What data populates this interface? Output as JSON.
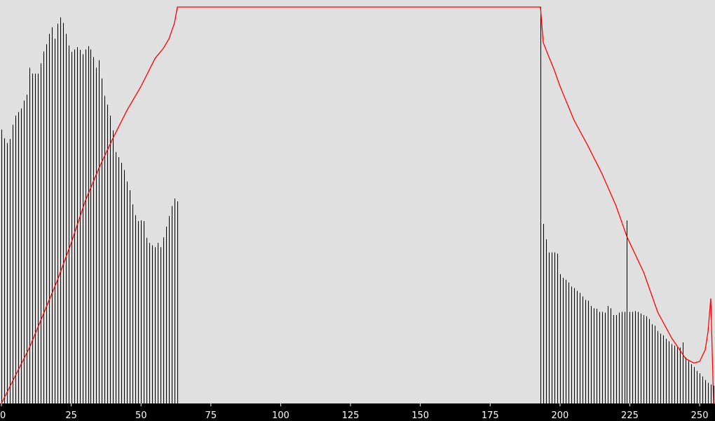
{
  "chart_data": {
    "type": "bar",
    "title": "",
    "xlabel": "",
    "ylabel": "",
    "xlim": [
      0,
      255
    ],
    "ylim": [
      0,
      100
    ],
    "grid": false,
    "legend": "none",
    "x_ticks": [
      "0",
      "25",
      "50",
      "75",
      "100",
      "125",
      "150",
      "175",
      "200",
      "225",
      "250"
    ],
    "x_tick_values": [
      0,
      25,
      50,
      75,
      100,
      125,
      150,
      175,
      200,
      225,
      250
    ],
    "histogram": [
      [
        0,
        69.1
      ],
      [
        1,
        66.9
      ],
      [
        2,
        65.7
      ],
      [
        3,
        66.7
      ],
      [
        4,
        70.3
      ],
      [
        5,
        72.6
      ],
      [
        6,
        73.5
      ],
      [
        7,
        74.4
      ],
      [
        8,
        76.4
      ],
      [
        9,
        77.9
      ],
      [
        10,
        84.7
      ],
      [
        11,
        83.2
      ],
      [
        12,
        83.2
      ],
      [
        13,
        83.2
      ],
      [
        14,
        85.8
      ],
      [
        15,
        88.8
      ],
      [
        16,
        90.6
      ],
      [
        17,
        93.2
      ],
      [
        18,
        94.9
      ],
      [
        19,
        92.0
      ],
      [
        20,
        95.8
      ],
      [
        21,
        97.4
      ],
      [
        22,
        96.0
      ],
      [
        23,
        93.2
      ],
      [
        24,
        90.3
      ],
      [
        25,
        88.7
      ],
      [
        26,
        89.3
      ],
      [
        27,
        89.9
      ],
      [
        28,
        89.2
      ],
      [
        29,
        88.1
      ],
      [
        30,
        89.3
      ],
      [
        31,
        90.1
      ],
      [
        32,
        89.3
      ],
      [
        33,
        87.4
      ],
      [
        34,
        84.7
      ],
      [
        35,
        86.6
      ],
      [
        36,
        82.0
      ],
      [
        37,
        77.6
      ],
      [
        38,
        75.4
      ],
      [
        39,
        72.6
      ],
      [
        40,
        68.9
      ],
      [
        41,
        63.4
      ],
      [
        42,
        62.1
      ],
      [
        43,
        60.7
      ],
      [
        44,
        58.9
      ],
      [
        45,
        56.0
      ],
      [
        46,
        53.8
      ],
      [
        47,
        50.2
      ],
      [
        48,
        47.5
      ],
      [
        49,
        46.0
      ],
      [
        50,
        46.2
      ],
      [
        51,
        46.0
      ],
      [
        52,
        41.8
      ],
      [
        53,
        40.5
      ],
      [
        54,
        39.9
      ],
      [
        55,
        39.4
      ],
      [
        56,
        40.5
      ],
      [
        57,
        39.4
      ],
      [
        58,
        41.9
      ],
      [
        59,
        44.6
      ],
      [
        60,
        47.3
      ],
      [
        61,
        49.8
      ],
      [
        62,
        51.7
      ],
      [
        63,
        51.0
      ],
      [
        193,
        100.0
      ],
      [
        194,
        45.3
      ],
      [
        195,
        41.4
      ],
      [
        196,
        38.1
      ],
      [
        197,
        38.1
      ],
      [
        198,
        38.1
      ],
      [
        199,
        37.8
      ],
      [
        200,
        32.6
      ],
      [
        201,
        31.7
      ],
      [
        202,
        31.2
      ],
      [
        203,
        30.5
      ],
      [
        204,
        29.5
      ],
      [
        205,
        29.1
      ],
      [
        206,
        28.4
      ],
      [
        207,
        27.9
      ],
      [
        208,
        27.0
      ],
      [
        209,
        26.1
      ],
      [
        210,
        25.9
      ],
      [
        211,
        24.6
      ],
      [
        212,
        24.0
      ],
      [
        213,
        23.9
      ],
      [
        214,
        23.1
      ],
      [
        215,
        23.1
      ],
      [
        216,
        22.9
      ],
      [
        217,
        24.6
      ],
      [
        218,
        24.0
      ],
      [
        219,
        22.3
      ],
      [
        220,
        22.3
      ],
      [
        221,
        22.9
      ],
      [
        222,
        23.1
      ],
      [
        223,
        23.1
      ],
      [
        224,
        46.2
      ],
      [
        225,
        23.1
      ],
      [
        226,
        23.1
      ],
      [
        227,
        23.3
      ],
      [
        228,
        23.1
      ],
      [
        229,
        22.7
      ],
      [
        230,
        22.3
      ],
      [
        231,
        22.0
      ],
      [
        232,
        21.3
      ],
      [
        233,
        20.0
      ],
      [
        234,
        19.6
      ],
      [
        235,
        18.3
      ],
      [
        236,
        17.6
      ],
      [
        237,
        17.2
      ],
      [
        238,
        16.3
      ],
      [
        239,
        15.7
      ],
      [
        240,
        15.0
      ],
      [
        241,
        14.6
      ],
      [
        242,
        14.1
      ],
      [
        243,
        14.1
      ],
      [
        244,
        15.4
      ],
      [
        245,
        11.6
      ],
      [
        246,
        10.7
      ],
      [
        247,
        9.9
      ],
      [
        248,
        9.2
      ],
      [
        249,
        8.2
      ],
      [
        250,
        7.6
      ],
      [
        251,
        6.8
      ],
      [
        252,
        5.9
      ],
      [
        253,
        5.2
      ],
      [
        254,
        4.8
      ],
      [
        255,
        4.5
      ]
    ],
    "histogram_color": "#000000",
    "curve": {
      "color": "#ff0000",
      "points": [
        [
          0,
          0
        ],
        [
          5,
          7
        ],
        [
          10,
          14
        ],
        [
          15,
          22.5
        ],
        [
          20,
          31
        ],
        [
          25,
          40.5
        ],
        [
          30,
          51
        ],
        [
          35,
          59.5
        ],
        [
          40,
          67
        ],
        [
          45,
          74
        ],
        [
          50,
          80
        ],
        [
          55,
          87
        ],
        [
          58,
          89.6
        ],
        [
          60,
          92
        ],
        [
          62,
          96
        ],
        [
          63,
          100
        ],
        [
          193,
          100
        ],
        [
          194,
          91
        ],
        [
          196,
          87.5
        ],
        [
          198,
          84
        ],
        [
          200,
          80
        ],
        [
          205,
          71.5
        ],
        [
          210,
          65
        ],
        [
          215,
          58
        ],
        [
          220,
          50
        ],
        [
          224,
          42
        ],
        [
          230,
          33
        ],
        [
          235,
          23
        ],
        [
          240,
          16.5
        ],
        [
          245,
          11.3
        ],
        [
          248,
          10.2
        ],
        [
          250,
          10.6
        ],
        [
          252,
          13.5
        ],
        [
          253,
          18
        ],
        [
          254,
          26.5
        ],
        [
          255,
          0
        ]
      ]
    }
  }
}
